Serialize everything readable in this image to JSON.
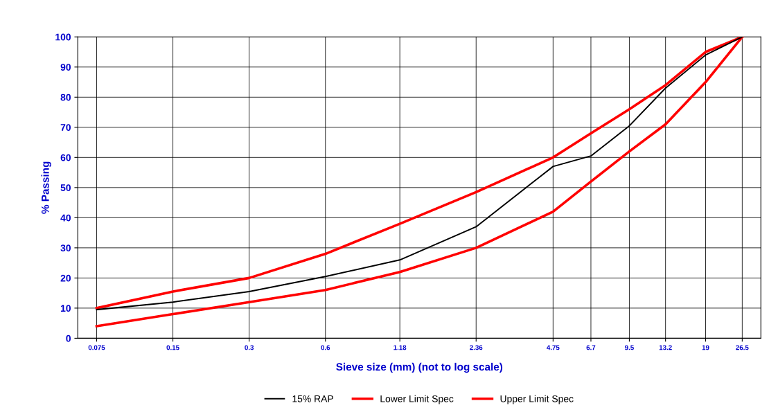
{
  "chart_data": {
    "type": "line",
    "xlabel": "Sieve size (mm) (not to log scale)",
    "ylabel": "% Passing",
    "x": [
      0.075,
      0.15,
      0.3,
      0.6,
      1.18,
      2.36,
      4.75,
      6.7,
      9.5,
      13.2,
      19,
      26.5
    ],
    "series": [
      {
        "name": "15% RAP",
        "color": "#000000",
        "values": [
          9.5,
          12,
          15.5,
          20.5,
          26,
          37,
          57,
          60.5,
          70.5,
          83,
          94,
          100
        ]
      },
      {
        "name": "Lower Limit Spec",
        "color": "#ff0000",
        "values": [
          4,
          8,
          12,
          16,
          22,
          30,
          42,
          52,
          62,
          71,
          85,
          100
        ]
      },
      {
        "name": "Upper Limit Spec",
        "color": "#ff0000",
        "values": [
          10,
          15.5,
          20,
          28,
          38,
          48.5,
          60,
          68,
          76,
          84,
          95,
          100
        ]
      }
    ],
    "log": "x",
    "xlim": [
      0.0632,
      31.4
    ],
    "xticks": [
      0.075,
      0.15,
      0.3,
      0.6,
      1.18,
      2.36,
      4.75,
      6.7,
      9.5,
      13.2,
      19,
      26.5
    ],
    "ylim": [
      0,
      100
    ],
    "yticks": [
      0,
      10,
      20,
      30,
      40,
      50,
      60,
      70,
      80,
      90,
      100
    ],
    "grid": true,
    "legend": "bottom",
    "marker": "none",
    "line_style": "solid"
  }
}
